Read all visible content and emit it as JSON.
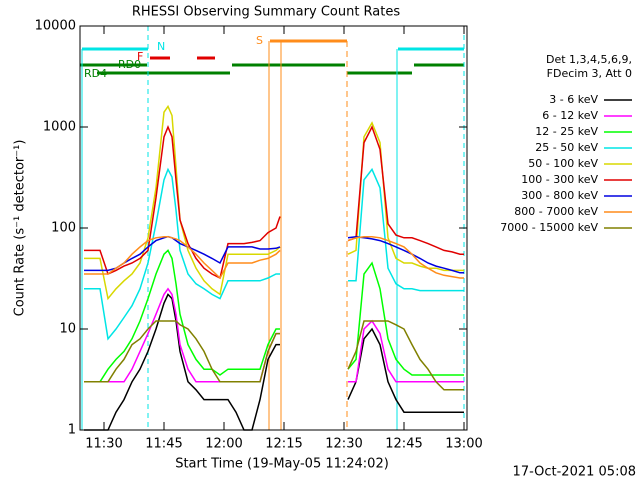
{
  "chart_data": {
    "type": "line",
    "title": "RHESSI Observing Summary Count Rates",
    "x_label": "Start Time (19-May-05 11:24:02)",
    "y_label": "Count Rate (s⁻¹ detector⁻¹)",
    "legend_header": [
      "Det 1,3,4,5,6,9,",
      "FDecim 3, Att 0"
    ],
    "annotations": [
      "N",
      "F",
      "S",
      "RD0",
      "RD4"
    ],
    "timestamp": "17-Oct-2021 05:08",
    "log_y": true,
    "xlim": [
      24,
      120.75
    ],
    "xticks": [
      {
        "value": 30,
        "label": "11:30"
      },
      {
        "value": 45,
        "label": "11:45"
      },
      {
        "value": 60,
        "label": "12:00"
      },
      {
        "value": 75,
        "label": "12:15"
      },
      {
        "value": 90,
        "label": "12:30"
      },
      {
        "value": 105,
        "label": "12:45"
      },
      {
        "value": 120,
        "label": "13:00"
      }
    ],
    "ylim": [
      1,
      10000
    ],
    "yticks": [
      1,
      10,
      100,
      1000,
      10000
    ],
    "x": [
      25,
      27,
      29,
      31,
      33,
      35,
      37,
      39,
      41,
      43,
      45,
      46,
      47,
      48,
      49,
      51,
      53,
      55,
      57,
      59,
      61,
      63,
      65,
      67,
      69,
      71,
      73,
      74,
      82,
      91,
      93,
      95,
      97,
      99,
      101,
      103,
      105,
      107,
      109,
      111,
      113,
      115,
      117,
      119,
      120
    ],
    "series": [
      {
        "name": "3 - 6 keV",
        "color": "#000000",
        "values": [
          1,
          1,
          1,
          1,
          1.5,
          2,
          3,
          4,
          6,
          10,
          18,
          22,
          20,
          12,
          6,
          3,
          2.5,
          2,
          2,
          2,
          2,
          1.5,
          1,
          1,
          2,
          5,
          7,
          7,
          null,
          2,
          3,
          8,
          10,
          7,
          3,
          2,
          1.5,
          1.5,
          1.5,
          1.5,
          1.5,
          1.5,
          1.5,
          1.5,
          1.5
        ]
      },
      {
        "name": "6 - 12 keV",
        "color": "#ff00ff",
        "values": [
          3,
          3,
          3,
          3,
          3,
          3,
          4,
          6,
          9,
          14,
          22,
          25,
          22,
          14,
          7,
          4,
          3,
          3,
          3,
          3,
          3,
          3,
          3,
          3,
          3,
          6,
          9,
          9,
          null,
          3,
          3,
          10,
          12,
          9,
          4,
          3,
          3,
          3,
          3,
          3,
          3,
          3,
          3,
          3,
          3
        ]
      },
      {
        "name": "12 - 25 keV",
        "color": "#00ff00",
        "values": [
          3,
          3,
          3,
          4,
          5,
          6,
          8,
          12,
          20,
          35,
          55,
          60,
          50,
          28,
          14,
          7,
          5,
          4,
          4,
          3.5,
          4,
          4,
          4,
          4,
          4,
          7,
          10,
          10,
          null,
          4,
          5,
          35,
          45,
          25,
          8,
          5,
          4,
          3.5,
          3.5,
          3.5,
          3.5,
          3.5,
          3.5,
          3.5,
          3.5
        ]
      },
      {
        "name": "25 - 50 keV",
        "color": "#00e5e5",
        "values": [
          25,
          25,
          25,
          8,
          10,
          13,
          17,
          25,
          45,
          110,
          300,
          380,
          320,
          150,
          60,
          35,
          28,
          25,
          22,
          20,
          30,
          30,
          30,
          30,
          30,
          32,
          35,
          35,
          null,
          30,
          30,
          300,
          380,
          250,
          40,
          28,
          25,
          25,
          24,
          24,
          24,
          24,
          24,
          24,
          24
        ]
      },
      {
        "name": "50 - 100 keV",
        "color": "#d8d800",
        "values": [
          50,
          50,
          50,
          20,
          25,
          30,
          35,
          45,
          80,
          250,
          1400,
          1600,
          1300,
          400,
          120,
          60,
          40,
          30,
          25,
          22,
          55,
          55,
          55,
          55,
          55,
          55,
          60,
          65,
          null,
          55,
          60,
          800,
          1100,
          700,
          80,
          50,
          45,
          45,
          42,
          40,
          40,
          38,
          38,
          38,
          38
        ]
      },
      {
        "name": "100 - 300 keV",
        "color": "#e00000",
        "values": [
          60,
          60,
          60,
          35,
          38,
          42,
          45,
          50,
          60,
          200,
          800,
          1000,
          800,
          300,
          120,
          70,
          50,
          40,
          35,
          32,
          70,
          70,
          70,
          72,
          75,
          90,
          100,
          130,
          null,
          75,
          80,
          700,
          1000,
          600,
          110,
          85,
          80,
          80,
          75,
          70,
          65,
          60,
          58,
          55,
          55
        ]
      },
      {
        "name": "300 - 800 keV",
        "color": "#0000e0",
        "values": [
          38,
          38,
          38,
          38,
          40,
          45,
          50,
          55,
          65,
          75,
          80,
          82,
          80,
          75,
          70,
          65,
          60,
          55,
          50,
          45,
          65,
          65,
          65,
          65,
          62,
          62,
          63,
          65,
          null,
          80,
          82,
          80,
          78,
          75,
          70,
          65,
          60,
          55,
          50,
          45,
          42,
          40,
          38,
          36,
          36
        ]
      },
      {
        "name": "800 - 7000 keV",
        "color": "#ff8c1a",
        "values": [
          35,
          35,
          35,
          35,
          40,
          45,
          55,
          65,
          75,
          80,
          82,
          82,
          80,
          78,
          75,
          65,
          55,
          45,
          38,
          32,
          45,
          45,
          45,
          45,
          48,
          50,
          55,
          60,
          null,
          75,
          80,
          82,
          82,
          80,
          75,
          70,
          65,
          55,
          45,
          40,
          36,
          34,
          33,
          32,
          32
        ]
      },
      {
        "name": "7000 - 15000 keV",
        "color": "#808000",
        "values": [
          3,
          3,
          3,
          3,
          4,
          5,
          7,
          8,
          10,
          12,
          12,
          12,
          12,
          12,
          11,
          10,
          8,
          6,
          4,
          3,
          3,
          3,
          3,
          3,
          3,
          6,
          9,
          9,
          null,
          4,
          6,
          12,
          12,
          12,
          12,
          11,
          10,
          7,
          5,
          4,
          3,
          2.5,
          2.5,
          2.5,
          2.5
        ]
      }
    ]
  }
}
